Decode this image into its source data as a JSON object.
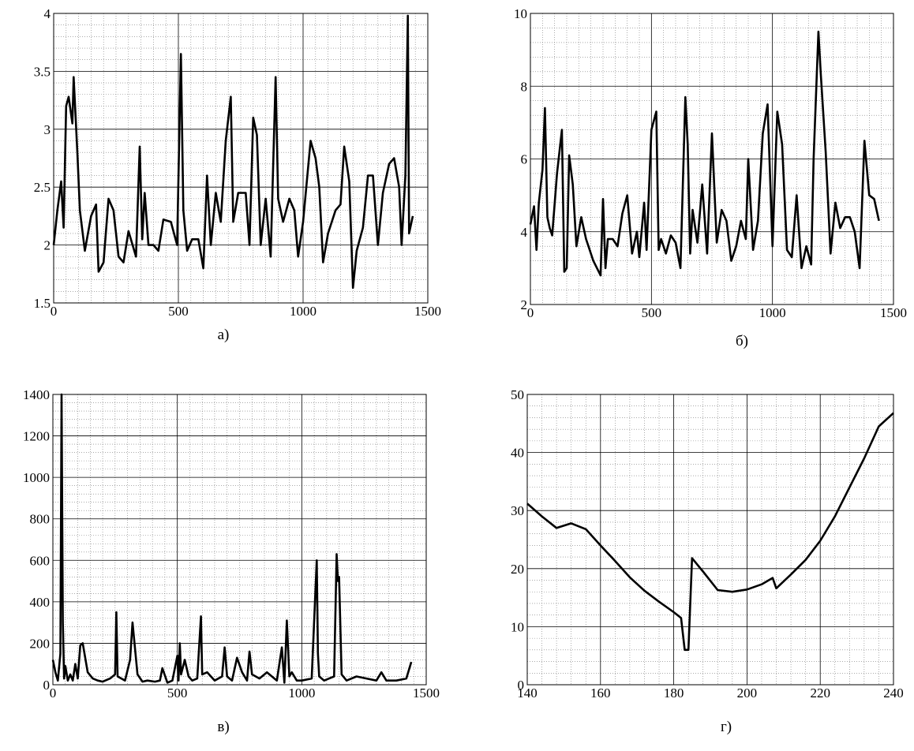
{
  "chart_data": [
    {
      "type": "line",
      "caption": "а)",
      "color": "#000000",
      "grid": true,
      "minor_grid": {
        "x": 10,
        "y": 5
      },
      "xlim": [
        0,
        1500
      ],
      "xticks": [
        0,
        500,
        1000,
        1500
      ],
      "ylim": [
        1.5,
        4
      ],
      "yticks": [
        1.5,
        2,
        2.5,
        3,
        3.5,
        4
      ],
      "x": [
        0,
        15,
        30,
        40,
        50,
        60,
        75,
        80,
        95,
        105,
        125,
        150,
        170,
        180,
        200,
        220,
        240,
        260,
        280,
        300,
        330,
        345,
        355,
        365,
        380,
        400,
        420,
        440,
        470,
        495,
        510,
        520,
        535,
        555,
        580,
        600,
        615,
        630,
        650,
        670,
        690,
        710,
        720,
        740,
        770,
        785,
        800,
        815,
        830,
        850,
        870,
        890,
        900,
        920,
        945,
        965,
        980,
        1000,
        1030,
        1050,
        1065,
        1080,
        1100,
        1130,
        1150,
        1165,
        1185,
        1200,
        1215,
        1240,
        1260,
        1280,
        1300,
        1320,
        1345,
        1365,
        1385,
        1395,
        1410,
        1420,
        1425,
        1440
      ],
      "values": [
        2.0,
        2.3,
        2.55,
        2.15,
        3.2,
        3.28,
        3.05,
        3.45,
        2.8,
        2.3,
        1.95,
        2.25,
        2.35,
        1.77,
        1.85,
        2.4,
        2.3,
        1.9,
        1.85,
        2.12,
        1.9,
        2.85,
        2.05,
        2.45,
        2.0,
        2.0,
        1.95,
        2.22,
        2.2,
        2.0,
        3.65,
        2.3,
        1.95,
        2.05,
        2.05,
        1.8,
        2.6,
        2.0,
        2.45,
        2.2,
        2.9,
        3.28,
        2.2,
        2.45,
        2.45,
        2.0,
        3.1,
        2.95,
        2.0,
        2.4,
        1.9,
        3.45,
        2.4,
        2.2,
        2.4,
        2.3,
        1.9,
        2.2,
        2.9,
        2.75,
        2.5,
        1.85,
        2.1,
        2.3,
        2.35,
        2.85,
        2.55,
        1.63,
        1.95,
        2.15,
        2.6,
        2.6,
        2.0,
        2.45,
        2.7,
        2.75,
        2.5,
        2.0,
        2.6,
        3.98,
        2.1,
        2.25
      ]
    },
    {
      "type": "line",
      "caption": "б)",
      "color": "#000000",
      "grid": true,
      "minor_grid": {
        "x": 10,
        "y": 5
      },
      "xlim": [
        0,
        1500
      ],
      "xticks": [
        0,
        500,
        1000,
        1500
      ],
      "ylim": [
        2,
        10
      ],
      "yticks": [
        2,
        4,
        6,
        8,
        10
      ],
      "x": [
        0,
        15,
        25,
        35,
        50,
        60,
        70,
        80,
        90,
        110,
        130,
        140,
        150,
        160,
        175,
        190,
        210,
        230,
        260,
        290,
        300,
        310,
        320,
        340,
        360,
        380,
        400,
        420,
        440,
        450,
        470,
        480,
        500,
        520,
        530,
        540,
        560,
        580,
        600,
        620,
        640,
        650,
        660,
        670,
        690,
        710,
        730,
        750,
        770,
        790,
        810,
        830,
        850,
        870,
        890,
        900,
        920,
        940,
        960,
        980,
        1000,
        1020,
        1040,
        1060,
        1080,
        1100,
        1120,
        1140,
        1160,
        1170,
        1190,
        1200,
        1220,
        1240,
        1260,
        1280,
        1300,
        1320,
        1340,
        1360,
        1380,
        1400,
        1420,
        1440
      ],
      "values": [
        4.2,
        4.7,
        3.5,
        4.8,
        5.7,
        7.4,
        4.4,
        4.1,
        3.9,
        5.6,
        6.8,
        2.9,
        3.0,
        6.1,
        5.3,
        3.6,
        4.4,
        3.8,
        3.2,
        2.8,
        4.9,
        3.0,
        3.8,
        3.8,
        3.6,
        4.5,
        5.0,
        3.4,
        4.0,
        3.3,
        4.8,
        3.5,
        6.8,
        7.3,
        3.5,
        3.8,
        3.4,
        3.9,
        3.7,
        3.0,
        7.7,
        6.4,
        3.4,
        4.6,
        3.7,
        5.3,
        3.4,
        6.7,
        3.7,
        4.6,
        4.3,
        3.2,
        3.6,
        4.3,
        3.8,
        6.0,
        3.5,
        4.3,
        6.7,
        7.5,
        3.6,
        7.3,
        6.4,
        3.5,
        3.3,
        5.0,
        3.0,
        3.6,
        3.1,
        6.0,
        9.5,
        8.3,
        6.2,
        3.4,
        4.8,
        4.1,
        4.4,
        4.4,
        4.0,
        3.0,
        6.5,
        5.0,
        4.9,
        4.3
      ]
    },
    {
      "type": "line",
      "caption": "в)",
      "color": "#000000",
      "grid": true,
      "minor_grid": {
        "x": 10,
        "y": 5
      },
      "xlim": [
        0,
        1500
      ],
      "xticks": [
        0,
        500,
        1000,
        1500
      ],
      "ylim": [
        0,
        1400
      ],
      "yticks": [
        0,
        200,
        400,
        600,
        800,
        1000,
        1200,
        1400
      ],
      "x": [
        0,
        10,
        20,
        30,
        35,
        40,
        45,
        50,
        60,
        70,
        80,
        90,
        100,
        110,
        120,
        140,
        160,
        180,
        200,
        230,
        250,
        255,
        260,
        290,
        310,
        320,
        340,
        360,
        380,
        410,
        430,
        440,
        460,
        480,
        500,
        505,
        510,
        515,
        530,
        545,
        560,
        580,
        595,
        600,
        620,
        650,
        680,
        690,
        700,
        720,
        740,
        760,
        780,
        790,
        800,
        830,
        860,
        900,
        920,
        930,
        940,
        950,
        960,
        980,
        1000,
        1040,
        1060,
        1065,
        1070,
        1090,
        1110,
        1130,
        1140,
        1145,
        1150,
        1160,
        1180,
        1220,
        1260,
        1300,
        1320,
        1340,
        1380,
        1420,
        1440
      ],
      "values": [
        120,
        60,
        20,
        150,
        1400,
        300,
        30,
        90,
        20,
        50,
        20,
        100,
        30,
        190,
        200,
        60,
        30,
        20,
        15,
        30,
        50,
        350,
        40,
        20,
        120,
        300,
        50,
        15,
        20,
        15,
        20,
        80,
        10,
        20,
        140,
        20,
        200,
        50,
        120,
        40,
        20,
        30,
        330,
        50,
        60,
        20,
        40,
        180,
        40,
        20,
        130,
        60,
        20,
        160,
        50,
        30,
        60,
        20,
        180,
        10,
        310,
        40,
        60,
        20,
        20,
        30,
        600,
        150,
        40,
        20,
        30,
        40,
        630,
        500,
        520,
        50,
        20,
        40,
        30,
        20,
        60,
        20,
        20,
        30,
        110
      ]
    },
    {
      "type": "line",
      "caption": "г)",
      "color": "#000000",
      "grid": true,
      "minor_grid": {
        "x": 5,
        "y": 5
      },
      "xlim": [
        140,
        240
      ],
      "xticks": [
        140,
        160,
        180,
        200,
        220,
        240
      ],
      "ylim": [
        0,
        50
      ],
      "yticks": [
        0,
        10,
        20,
        30,
        40,
        50
      ],
      "x": [
        140,
        144,
        148,
        152,
        156,
        160,
        164,
        168,
        172,
        176,
        180,
        182,
        183,
        184,
        185,
        188,
        192,
        196,
        200,
        204,
        207,
        208,
        212,
        216,
        220,
        224,
        228,
        232,
        236,
        240
      ],
      "values": [
        31.2,
        29,
        27,
        27.8,
        26.8,
        24,
        21.3,
        18.5,
        16.2,
        14.3,
        12.5,
        11.5,
        6,
        6,
        21.8,
        19.5,
        16.3,
        16,
        16.4,
        17.3,
        18.4,
        16.6,
        19,
        21.5,
        24.8,
        29,
        34,
        39,
        44.5,
        46.8
      ]
    }
  ]
}
